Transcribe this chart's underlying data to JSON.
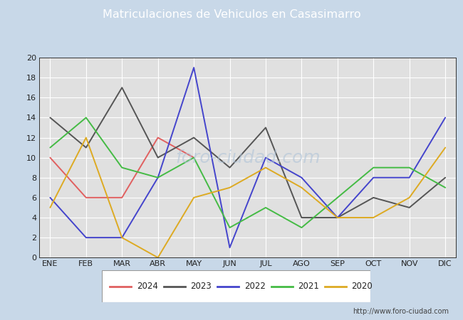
{
  "title": "Matriculaciones de Vehiculos en Casasimarro",
  "title_color": "#ffffff",
  "title_bg_color": "#4f86c6",
  "months": [
    "ENE",
    "FEB",
    "MAR",
    "ABR",
    "MAY",
    "JUN",
    "JUL",
    "AGO",
    "SEP",
    "OCT",
    "NOV",
    "DIC"
  ],
  "series": {
    "2024": {
      "color": "#e06060",
      "data": [
        10,
        6,
        6,
        12,
        10,
        null,
        null,
        null,
        null,
        null,
        null,
        null
      ]
    },
    "2023": {
      "color": "#555555",
      "data": [
        14,
        11,
        17,
        10,
        12,
        9,
        13,
        4,
        4,
        6,
        5,
        8
      ]
    },
    "2022": {
      "color": "#4444cc",
      "data": [
        6,
        2,
        2,
        8,
        19,
        1,
        10,
        8,
        4,
        8,
        8,
        14
      ]
    },
    "2021": {
      "color": "#44bb44",
      "data": [
        11,
        14,
        9,
        8,
        10,
        3,
        5,
        3,
        6,
        9,
        9,
        7
      ]
    },
    "2020": {
      "color": "#ddaa22",
      "data": [
        5,
        12,
        2,
        0,
        6,
        7,
        9,
        7,
        4,
        4,
        6,
        11
      ]
    }
  },
  "series_order": [
    "2024",
    "2023",
    "2022",
    "2021",
    "2020"
  ],
  "ylim": [
    0,
    20
  ],
  "yticks": [
    0,
    2,
    4,
    6,
    8,
    10,
    12,
    14,
    16,
    18,
    20
  ],
  "plot_bg_color": "#e0e0e0",
  "outer_bg_color": "#c8d8e8",
  "grid_color": "#ffffff",
  "url": "http://www.foro-ciudad.com",
  "watermark_color": "#b0c4d8",
  "watermark_text": "foro-ciudad.com"
}
